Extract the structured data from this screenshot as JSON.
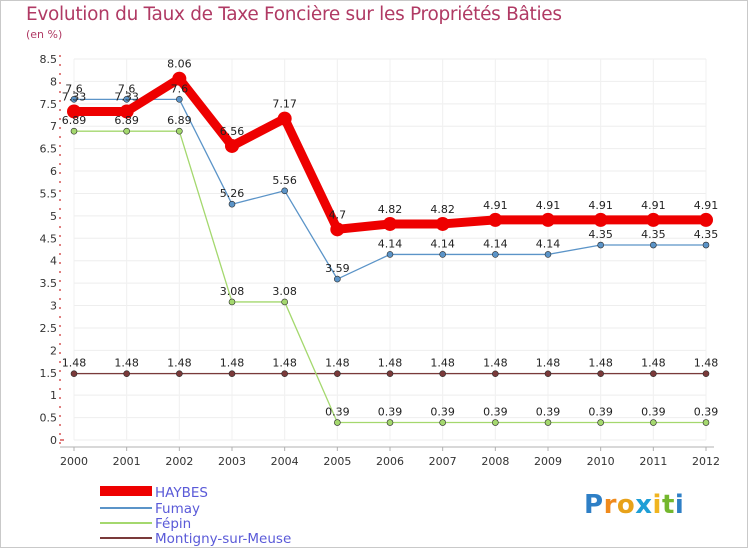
{
  "chart_data": {
    "type": "line",
    "title": "Evolution du Taux de Taxe Foncière sur les Propriétés Bâties",
    "ylabel": "(en %)",
    "categories": [
      "2000",
      "2001",
      "2002",
      "2003",
      "2004",
      "2005",
      "2006",
      "2007",
      "2008",
      "2009",
      "2010",
      "2011",
      "2012"
    ],
    "ylim": [
      0,
      8.5
    ],
    "yticks": [
      "0",
      "0.5",
      "1",
      "1.5",
      "2",
      "2.5",
      "3",
      "3.5",
      "4",
      "4.5",
      "5",
      "5.5",
      "6",
      "6.5",
      "7",
      "7.5",
      "8",
      "8.5"
    ],
    "series": [
      {
        "name": "HAYBES",
        "color": "#ee0000",
        "values": [
          7.33,
          7.33,
          8.06,
          6.56,
          7.17,
          4.7,
          4.82,
          4.82,
          4.91,
          4.91,
          4.91,
          4.91,
          4.91
        ],
        "labels": [
          "7.33",
          "7.33",
          "8.06",
          "6.56",
          "7.17",
          "4.7",
          "4.82",
          "4.82",
          "4.91",
          "4.91",
          "4.91",
          "4.91",
          "4.91"
        ]
      },
      {
        "name": "Fumay",
        "color": "#5b94c8",
        "values": [
          7.6,
          7.6,
          7.6,
          5.26,
          5.56,
          3.59,
          4.14,
          4.14,
          4.14,
          4.14,
          4.35,
          4.35,
          4.35
        ],
        "labels": [
          "7.6",
          "7.6",
          "7.6",
          "5.26",
          "5.56",
          "3.59",
          "4.14",
          "4.14",
          "4.14",
          "4.14",
          "4.35",
          "4.35",
          "4.35"
        ]
      },
      {
        "name": "Fépin",
        "color": "#a4d86e",
        "values": [
          6.89,
          6.89,
          6.89,
          3.08,
          3.08,
          0.39,
          0.39,
          0.39,
          0.39,
          0.39,
          0.39,
          0.39,
          0.39
        ],
        "labels": [
          "6.89",
          "6.89",
          "6.89",
          "3.08",
          "3.08",
          "0.39",
          "0.39",
          "0.39",
          "0.39",
          "0.39",
          "0.39",
          "0.39",
          "0.39"
        ]
      },
      {
        "name": "Montigny-sur-Meuse",
        "color": "#7a3a3a",
        "values": [
          1.48,
          1.48,
          1.48,
          1.48,
          1.48,
          1.48,
          1.48,
          1.48,
          1.48,
          1.48,
          1.48,
          1.48,
          1.48
        ],
        "labels": [
          "1.48",
          "1.48",
          "1.48",
          "1.48",
          "1.48",
          "1.48",
          "1.48",
          "1.48",
          "1.48",
          "1.48",
          "1.48",
          "1.48",
          "1.48"
        ]
      }
    ]
  },
  "brand": {
    "text": "Proxiti",
    "letters": [
      "P",
      "r",
      "o",
      "x",
      "i",
      "t",
      "i"
    ],
    "colors": [
      "#2e7fc6",
      "#f08a1c",
      "#e8a21a",
      "#1f9fd6",
      "#f0b41f",
      "#74b72e",
      "#2e7fc6"
    ]
  }
}
